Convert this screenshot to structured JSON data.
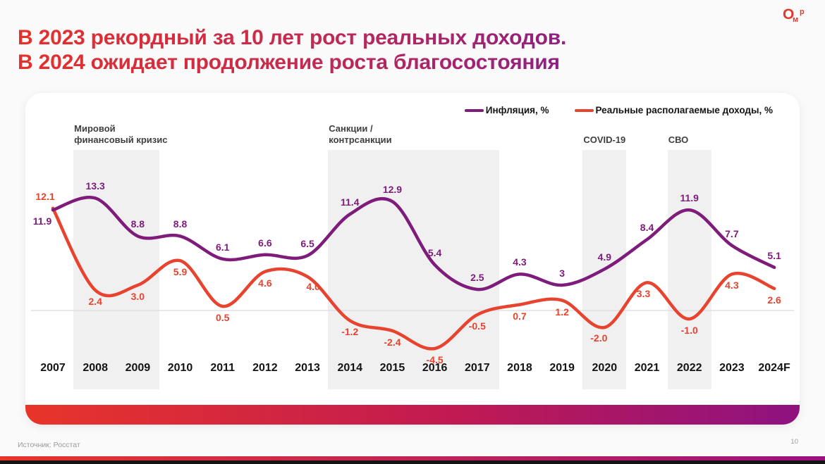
{
  "header": {
    "title_line1": "В 2023 рекордный за 10 лет рост реальных доходов.",
    "title_line2": "В 2024 ожидает продолжение роста благосостояния",
    "logo_letters": [
      "О",
      "м",
      "р"
    ]
  },
  "chart_data": {
    "type": "line",
    "title": "",
    "categories": [
      "2007",
      "2008",
      "2009",
      "2010",
      "2011",
      "2012",
      "2013",
      "2014",
      "2015",
      "2016",
      "2017",
      "2018",
      "2019",
      "2020",
      "2021",
      "2022",
      "2023",
      "2024F"
    ],
    "series": [
      {
        "name": "Инфляция, %",
        "color": "#7E1B7B",
        "values": [
          11.9,
          13.3,
          8.8,
          8.8,
          6.1,
          6.6,
          6.5,
          11.4,
          12.9,
          5.4,
          2.5,
          4.3,
          3,
          4.9,
          8.4,
          11.9,
          7.7,
          5.1
        ],
        "labels": [
          "11.9",
          "13.3",
          "8.8",
          "8.8",
          "6.1",
          "6.6",
          "6.5",
          "11.4",
          "12.9",
          "5.4",
          "2.5",
          "4.3",
          "3",
          "4.9",
          "8.4",
          "11.9",
          "7.7",
          "5.1"
        ]
      },
      {
        "name": "Реальные располагаемые доходы, %",
        "color": "#E8432E",
        "values": [
          12.1,
          2.4,
          3.0,
          5.9,
          0.5,
          4.6,
          4.0,
          -1.2,
          -2.4,
          -4.5,
          -0.5,
          0.7,
          1.2,
          -2.0,
          3.3,
          -1.0,
          4.3,
          2.6
        ],
        "labels": [
          "12.1",
          "2.4",
          "3.0",
          "5.9",
          "0.5",
          "4.6",
          "4.0",
          "-1.2",
          "-2.4",
          "-4.5",
          "-0.5",
          "0.7",
          "1.2",
          "-2.0",
          "3.3",
          "-1.0",
          "4.3",
          "2.6"
        ]
      }
    ],
    "annotations": [
      {
        "lines": [
          "Мировой",
          "финансовый кризис"
        ],
        "from": "2008",
        "to": "2009"
      },
      {
        "lines": [
          "Санкции /",
          "контрсанкции"
        ],
        "from": "2014",
        "to": "2017"
      },
      {
        "lines": [
          "COVID-19"
        ],
        "from": "2020",
        "to": "2020"
      },
      {
        "lines": [
          "СВО"
        ],
        "from": "2022",
        "to": "2022"
      }
    ],
    "xlabel": "",
    "ylabel": "",
    "ylim": [
      -9,
      19
    ],
    "baseline": 0,
    "grid": "zero-line-only",
    "legend_position": "top-right"
  },
  "colors": {
    "inflation_line": "#7E1B7B",
    "income_line": "#E8432E",
    "title_gradient_start": "#E4312B",
    "title_gradient_end": "#8E2082",
    "band_fill": "#F0F0F0",
    "zero_line": "#DBDBDB",
    "bottom_bar_start": "#E8352A",
    "bottom_bar_end": "#8E1280",
    "logo_red": "#E23A2E"
  },
  "footer": {
    "source": "Источник: Росстат",
    "page_number": "10"
  }
}
